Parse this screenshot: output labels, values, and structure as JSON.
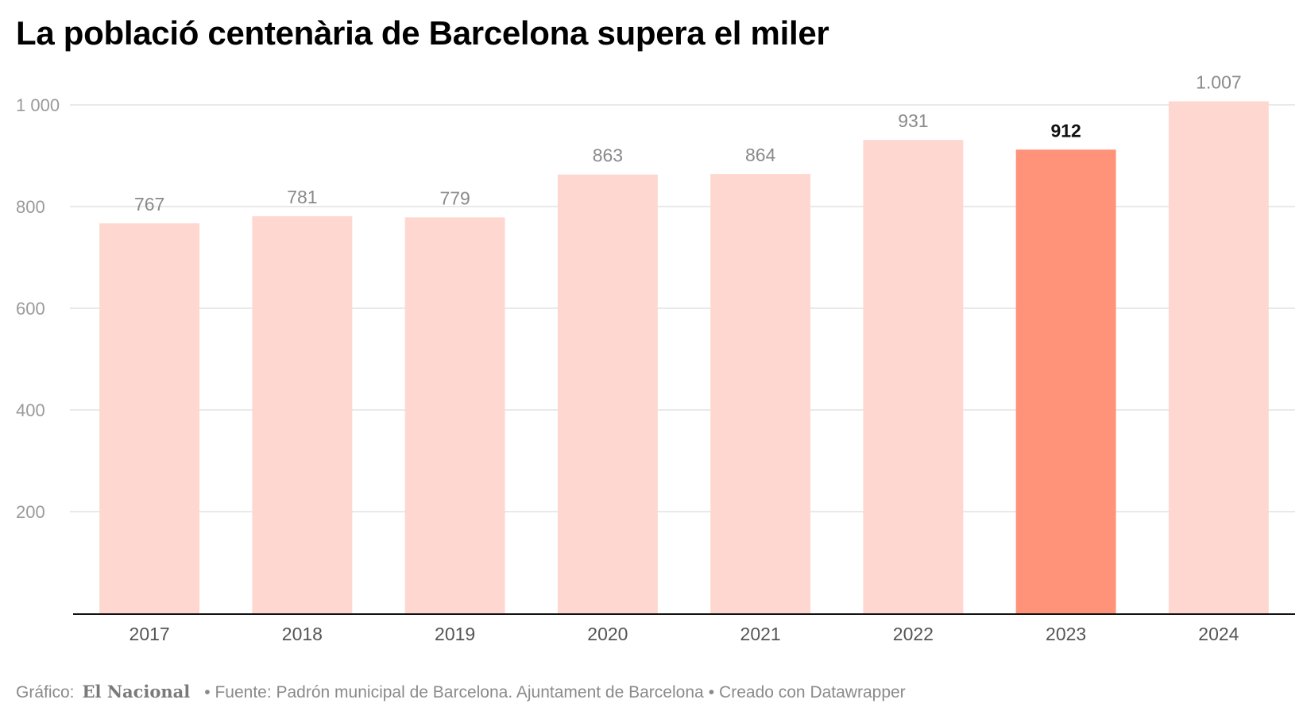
{
  "header": {
    "title": "La població centenària de Barcelona supera el miler"
  },
  "chart_data": {
    "type": "bar",
    "title": "La població centenària de Barcelona supera el miler",
    "xlabel": "",
    "ylabel": "",
    "categories": [
      "2017",
      "2018",
      "2019",
      "2020",
      "2021",
      "2022",
      "2023",
      "2024"
    ],
    "values": [
      767,
      781,
      779,
      863,
      864,
      931,
      912,
      1007
    ],
    "value_labels": [
      "767",
      "781",
      "779",
      "863",
      "864",
      "931",
      "912",
      "1.007"
    ],
    "highlight_category": "2023",
    "ylim": [
      0,
      1000
    ],
    "yticks": [
      200,
      400,
      600,
      800,
      1000
    ],
    "ytick_labels": [
      "200",
      "400",
      "600",
      "800",
      "1 000"
    ],
    "grid": true,
    "legend": "none",
    "colors": {
      "bar": "#fed8d0",
      "bar_highlight": "#ff937a",
      "label": "#8a8a8a",
      "label_highlight": "#111111",
      "grid": "#e2e2e2",
      "baseline": "#111111",
      "tick_label": "#9a9a9a"
    }
  },
  "footer": {
    "prefix": "Gráfico:",
    "logo_text": "El Nacional",
    "source": "• Fuente: Padrón municipal de Barcelona. Ajuntament de Barcelona",
    "separator": "•",
    "credit": "Creado con Datawrapper"
  }
}
